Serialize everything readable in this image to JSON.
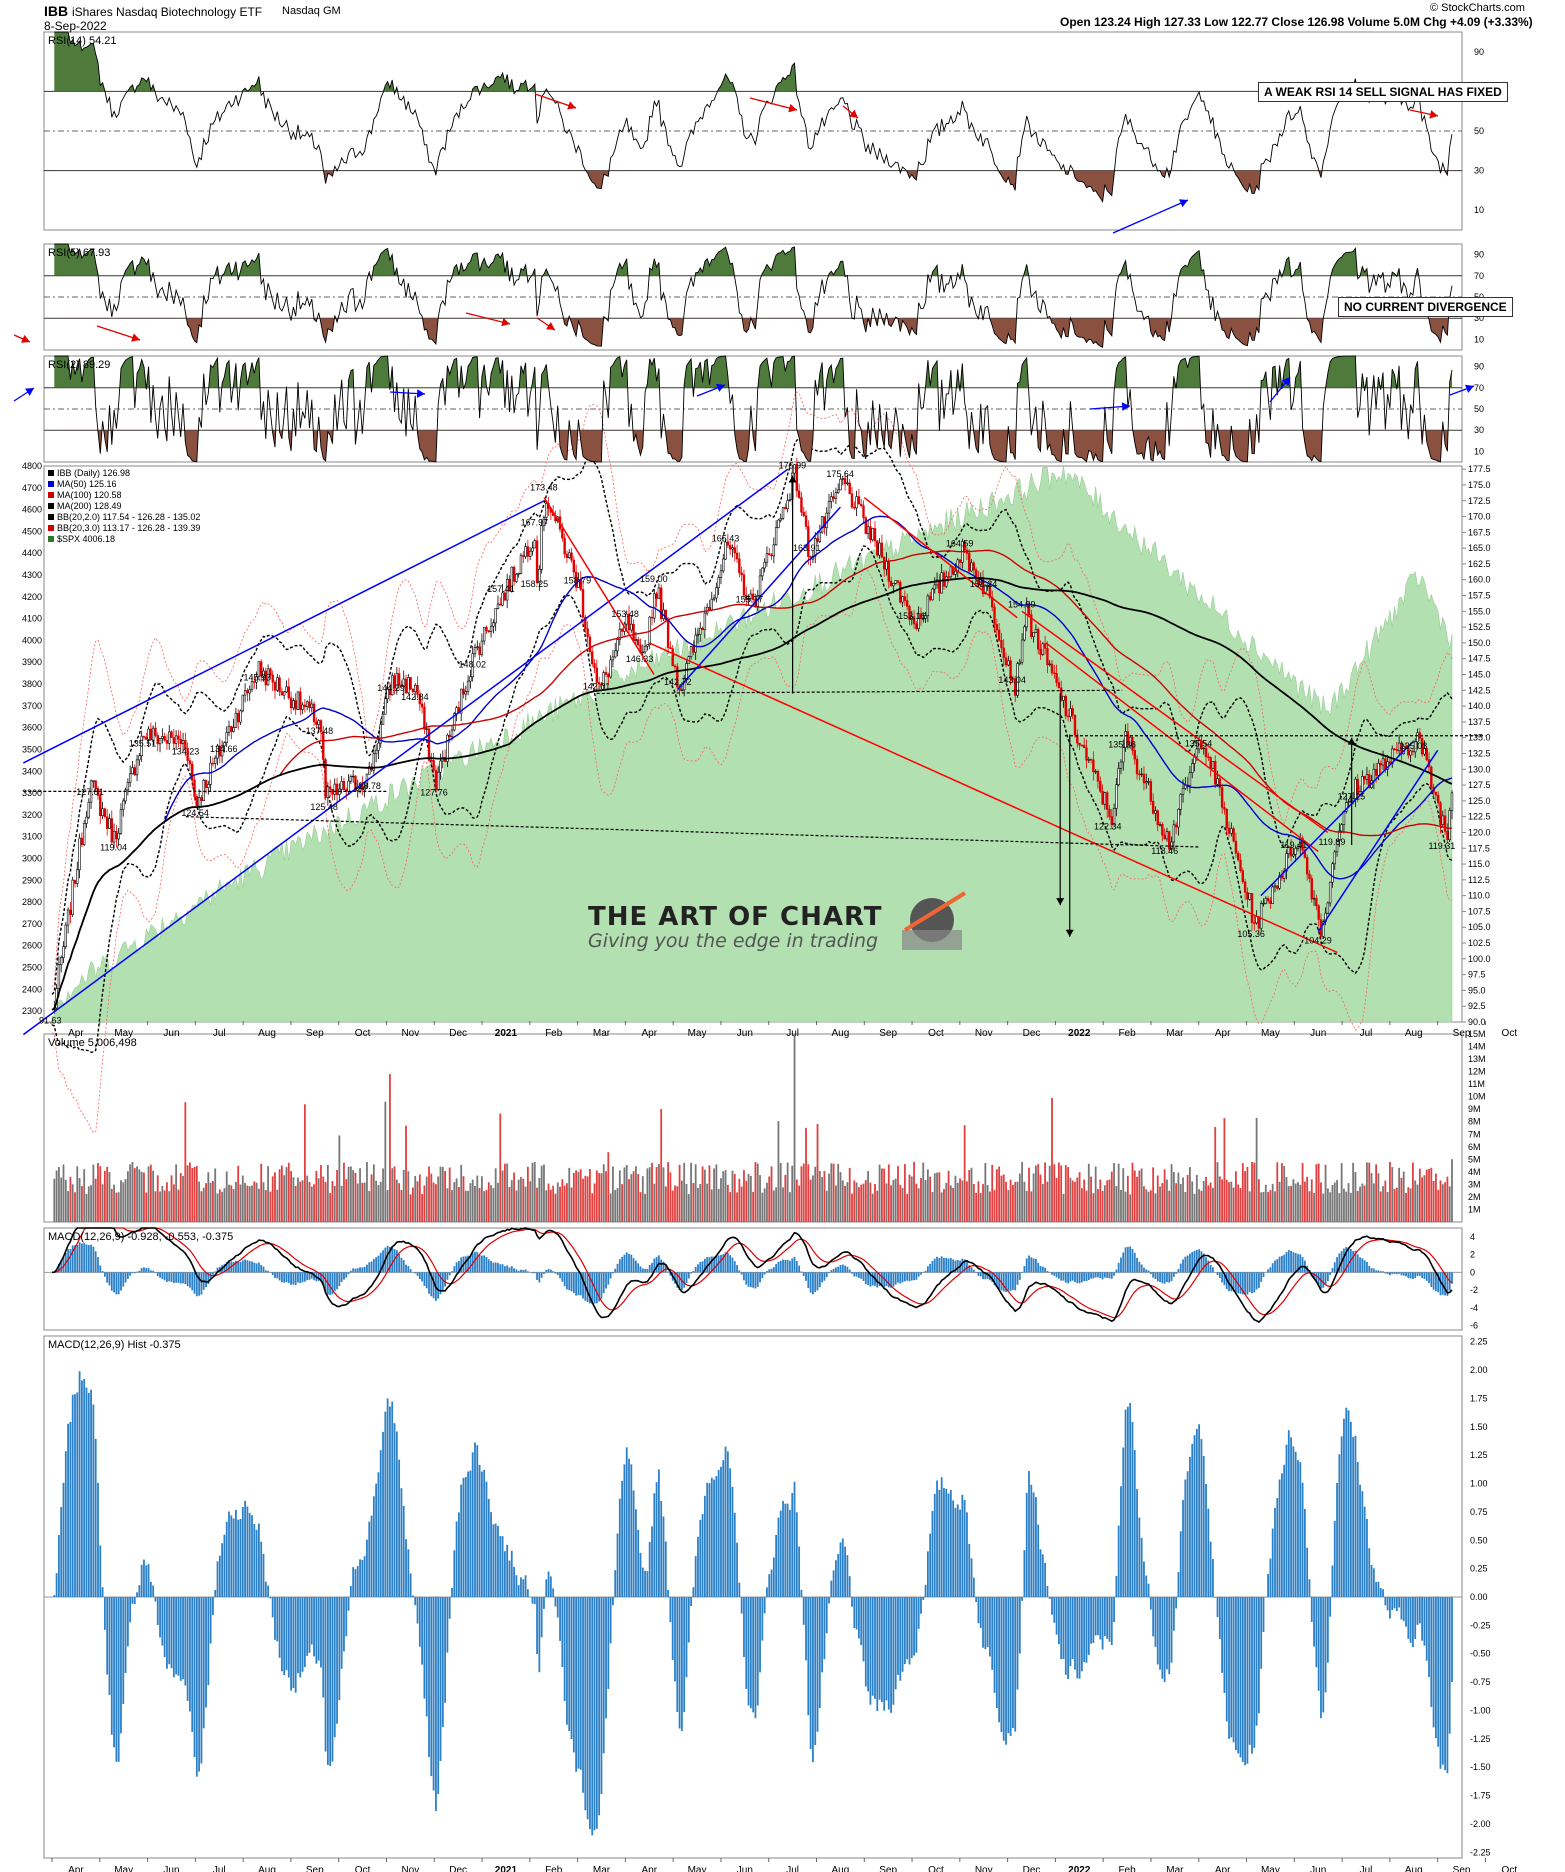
{
  "header": {
    "symbol": "IBB",
    "name": "iShares Nasdaq Biotechnology ETF",
    "exchange": "Nasdaq GM",
    "date": "8-Sep-2022",
    "quote": "Open 123.24  High 127.33  Low 122.77  Close 126.98  Volume 5.0M  Chg +4.09 (+3.33%)",
    "copyright": "© StockCharts.com"
  },
  "notes": {
    "rsi14": "A WEAK RSI 14 SELL SIGNAL HAS FIXED",
    "rsi5": "NO CURRENT DIVERGENCE"
  },
  "watermark": {
    "title": "THE ART OF CHART",
    "tagline": "Giving you the edge in trading"
  },
  "colors": {
    "up": "#ff0000",
    "down": "#000000",
    "ma50": "#0000cc",
    "ma100": "#cc0000",
    "ma200": "#000000",
    "spx_fill": "#b3e0b0",
    "rsi_ob": "#4e7a3c",
    "rsi_os": "#8a5040",
    "trend_blue": "#0000ff",
    "trend_red": "#ff0000",
    "hist": "#2b80c8"
  },
  "chart_data": [
    {
      "type": "line",
      "panel": "rsi14",
      "label": "RSI(14) 54.21",
      "last": 54.21,
      "ylim": [
        0,
        100
      ],
      "yticks": [
        "90",
        "70",
        "50",
        "30",
        "10"
      ],
      "levels": [
        30,
        50,
        70
      ]
    },
    {
      "type": "line",
      "panel": "rsi5",
      "label": "RSI(5) 67.93",
      "last": 67.93,
      "ylim": [
        0,
        100
      ],
      "yticks": [
        "90",
        "70",
        "50",
        "30",
        "10"
      ],
      "levels": [
        30,
        50,
        70
      ]
    },
    {
      "type": "line",
      "panel": "rsi2",
      "label": "RSI(2) 89.29",
      "last": 89.29,
      "ylim": [
        0,
        100
      ],
      "yticks": [
        "90",
        "70",
        "50",
        "30",
        "10"
      ],
      "levels": [
        30,
        50,
        70
      ]
    },
    {
      "type": "candlestick",
      "panel": "price",
      "legend": [
        "IBB (Daily) 126.98",
        "MA(50) 125.16",
        "MA(100) 120.58",
        "MA(200) 128.49",
        "BB(20,2.0) 117.54 - 126.28 - 135.02",
        "BB(20,3.0) 113.17 - 126.28 - 139.39",
        "$SPX 4006.18"
      ],
      "ylim": [
        90,
        178
      ],
      "yticks": [
        "177.5",
        "175.0",
        "172.5",
        "170.0",
        "167.5",
        "165.0",
        "162.5",
        "160.0",
        "157.5",
        "155.0",
        "152.5",
        "150.0",
        "147.5",
        "145.0",
        "142.5",
        "140.0",
        "137.5",
        "135.0",
        "132.5",
        "130.0",
        "127.5",
        "125.0",
        "122.5",
        "120.0",
        "117.5",
        "115.0",
        "112.5",
        "110.0",
        "107.5",
        "105.0",
        "102.5",
        "100.0",
        "97.5",
        "95.0",
        "92.5",
        "90.0"
      ],
      "spx_ylim": [
        2250,
        4800
      ],
      "spx_ticks": [
        "4800",
        "4700",
        "4600",
        "4500",
        "4400",
        "4300",
        "4200",
        "4100",
        "4000",
        "3900",
        "3800",
        "3700",
        "3600",
        "3500",
        "3400",
        "3300",
        "3200",
        "3100",
        "3000",
        "2900",
        "2800",
        "2700",
        "2600",
        "2500",
        "2400",
        "2300"
      ],
      "x_months": [
        "Apr",
        "May",
        "Jun",
        "Jul",
        "Aug",
        "Sep",
        "Oct",
        "Nov",
        "Dec",
        "2021",
        "Feb",
        "Mar",
        "Apr",
        "May",
        "Jun",
        "Jul",
        "Aug",
        "Sep",
        "Oct",
        "Nov",
        "Dec",
        "2022",
        "Feb",
        "Mar",
        "Apr",
        "May",
        "Jun",
        "Jul",
        "Aug",
        "Sep",
        "Oct"
      ],
      "pivots": [
        {
          "t": 0.02,
          "v": 91.63,
          "label": "91.63"
        },
        {
          "t": 4.3,
          "v": 145.93,
          "label": "145.93"
        },
        {
          "t": 3.6,
          "v": 134.66,
          "label": "134.66"
        },
        {
          "t": 0.8,
          "v": 127.81,
          "label": "127.81"
        },
        {
          "t": 1.9,
          "v": 135.51,
          "label": "135.51"
        },
        {
          "t": 2.8,
          "v": 134.23,
          "label": "134.23"
        },
        {
          "t": 1.3,
          "v": 119.04,
          "label": "119.04"
        },
        {
          "t": 3.0,
          "v": 124.54,
          "label": "124.54"
        },
        {
          "t": 5.6,
          "v": 137.48,
          "label": "137.48"
        },
        {
          "t": 5.7,
          "v": 125.48,
          "label": "125.48"
        },
        {
          "t": 6.6,
          "v": 128.78,
          "label": "128.78"
        },
        {
          "t": 7.1,
          "v": 144.29,
          "label": "144.29"
        },
        {
          "t": 7.6,
          "v": 142.84,
          "label": "142.84"
        },
        {
          "t": 8.0,
          "v": 127.76,
          "label": "127.76"
        },
        {
          "t": 8.8,
          "v": 148.02,
          "label": "148.02"
        },
        {
          "t": 9.4,
          "v": 157.41,
          "label": "157.41"
        },
        {
          "t": 10.1,
          "v": 167.97,
          "label": "167.97"
        },
        {
          "t": 10.3,
          "v": 173.48,
          "label": "173.48"
        },
        {
          "t": 10.1,
          "v": 158.25,
          "label": "158.25"
        },
        {
          "t": 11.0,
          "v": 158.79,
          "label": "158.79"
        },
        {
          "t": 11.4,
          "v": 142.01,
          "label": "142.01"
        },
        {
          "t": 12.0,
          "v": 153.48,
          "label": "153.48"
        },
        {
          "t": 12.6,
          "v": 159.0,
          "label": "159.00"
        },
        {
          "t": 12.3,
          "v": 146.33,
          "label": "146.33"
        },
        {
          "t": 13.1,
          "v": 142.72,
          "label": "142.72"
        },
        {
          "t": 14.1,
          "v": 165.43,
          "label": "165.43"
        },
        {
          "t": 14.6,
          "v": 155.77,
          "label": "155.77"
        },
        {
          "t": 15.5,
          "v": 176.99,
          "label": "176.99"
        },
        {
          "t": 15.8,
          "v": 163.91,
          "label": "163.91"
        },
        {
          "t": 16.5,
          "v": 175.64,
          "label": "175.64"
        },
        {
          "t": 18.0,
          "v": 153.16,
          "label": "153.16"
        },
        {
          "t": 19.0,
          "v": 164.59,
          "label": "164.59"
        },
        {
          "t": 19.5,
          "v": 158.24,
          "label": "158.24"
        },
        {
          "t": 20.3,
          "v": 154.99,
          "label": "154.99"
        },
        {
          "t": 20.1,
          "v": 143.04,
          "label": "143.04"
        },
        {
          "t": 22.4,
          "v": 135.36,
          "label": "135.36"
        },
        {
          "t": 22.1,
          "v": 122.34,
          "label": "122.34"
        },
        {
          "t": 23.3,
          "v": 118.46,
          "label": "118.46"
        },
        {
          "t": 24.0,
          "v": 135.54,
          "label": "135.54"
        },
        {
          "t": 25.1,
          "v": 105.36,
          "label": "105.36"
        },
        {
          "t": 26.0,
          "v": 119.41,
          "label": "119.41"
        },
        {
          "t": 26.5,
          "v": 104.29,
          "label": "104.29"
        },
        {
          "t": 26.8,
          "v": 119.89,
          "label": "119.89"
        },
        {
          "t": 27.2,
          "v": 127.15,
          "label": "127.15"
        },
        {
          "t": 28.5,
          "v": 135.08,
          "label": "135.08"
        },
        {
          "t": 29.1,
          "v": 119.31,
          "label": "119.31"
        },
        {
          "t": 29.2,
          "v": 126.98,
          "label": ""
        }
      ]
    },
    {
      "type": "bar",
      "panel": "volume",
      "label": "Volume 5,006,498",
      "last": 5006498,
      "ylim": [
        0,
        15000000
      ],
      "yticks": [
        "15M",
        "14M",
        "13M",
        "12M",
        "11M",
        "10M",
        "9M",
        "8M",
        "7M",
        "6M",
        "5M",
        "4M",
        "3M",
        "2M",
        "1M"
      ]
    },
    {
      "type": "line",
      "panel": "macd",
      "label": "MACD(12,26,9) -0.928, -0.553, -0.375",
      "values": {
        "macd": -0.928,
        "signal": -0.553,
        "hist": -0.375
      },
      "ylim": [
        -6.5,
        5
      ],
      "yticks": [
        "4",
        "2",
        "0",
        "-2",
        "-4",
        "-6"
      ]
    },
    {
      "type": "bar",
      "panel": "macd_hist",
      "label": "MACD(12,26,9) Hist -0.375",
      "last": -0.375,
      "ylim": [
        -2.3,
        2.3
      ],
      "yticks": [
        "2.25",
        "2.00",
        "1.75",
        "1.50",
        "1.25",
        "1.00",
        "0.75",
        "0.50",
        "0.25",
        "0.00",
        "-0.25",
        "-0.50",
        "-0.75",
        "-1.00",
        "-1.25",
        "-1.50",
        "-1.75",
        "-2.00",
        "-2.25"
      ]
    }
  ]
}
